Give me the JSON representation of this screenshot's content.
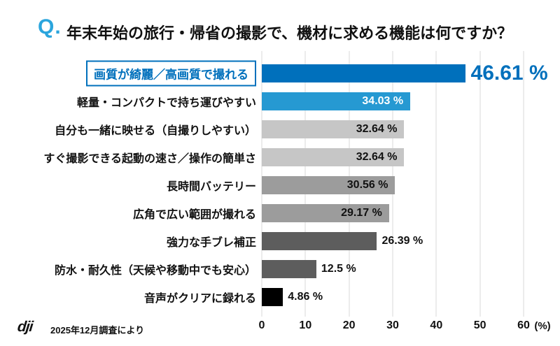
{
  "header": {
    "q_prefix": "Q.",
    "title": "年末年始の旅行・帰省の撮影で、機材に求める機能は何ですか？"
  },
  "footer": {
    "logo_text": "dji",
    "note": "2025年12月調査により"
  },
  "colors": {
    "accent_blue": "#0070BC",
    "light_blue": "#2699D2",
    "q_mark_blue": "#2BA5DD",
    "light_gray": "#C6C6C6",
    "mid_gray": "#9C9C9C",
    "dark_gray": "#5D5D5D",
    "black": "#000000",
    "gridline": "#ECECEC"
  },
  "chart_data": {
    "type": "bar",
    "orientation": "horizontal",
    "title": "Q. 年末年始の旅行・帰省の撮影で、機材に求める機能は何ですか？",
    "categories": [
      "画質が綺麗／高画質で撮れる",
      "軽量・コンパクトで持ち運びやすい",
      "自分も一緒に映せる（自撮りしやすい）",
      "すぐ撮影できる起動の速さ／操作の簡単さ",
      "長時間バッテリー",
      "広角で広い範囲が撮れる",
      "強力な手ブレ補正",
      "防水・耐久性（天候や移動中でも安心）",
      "音声がクリアに録れる"
    ],
    "values": [
      46.61,
      34.03,
      32.64,
      32.64,
      30.56,
      29.17,
      26.39,
      12.5,
      4.86
    ],
    "value_labels": [
      "46.61 %",
      "34.03 %",
      "32.64 %",
      "32.64 %",
      "30.56 %",
      "29.17 %",
      "26.39 %",
      "12.5 %",
      "4.86 %"
    ],
    "bar_colors": [
      "#0070BC",
      "#2699D2",
      "#C6C6C6",
      "#C6C6C6",
      "#9C9C9C",
      "#9C9C9C",
      "#5D5D5D",
      "#5D5D5D",
      "#000000"
    ],
    "value_label_inside": [
      false,
      true,
      true,
      true,
      true,
      true,
      false,
      false,
      false
    ],
    "value_label_colors": [
      "#0070BC",
      "#FFFFFF",
      "#111111",
      "#111111",
      "#111111",
      "#111111",
      "#111111",
      "#111111",
      "#111111"
    ],
    "highlight_index": 0,
    "xlim": [
      0,
      60
    ],
    "x_ticks": [
      0,
      10,
      20,
      30,
      40,
      50,
      60
    ],
    "x_unit": "(%)",
    "grid": true,
    "legend": false
  }
}
